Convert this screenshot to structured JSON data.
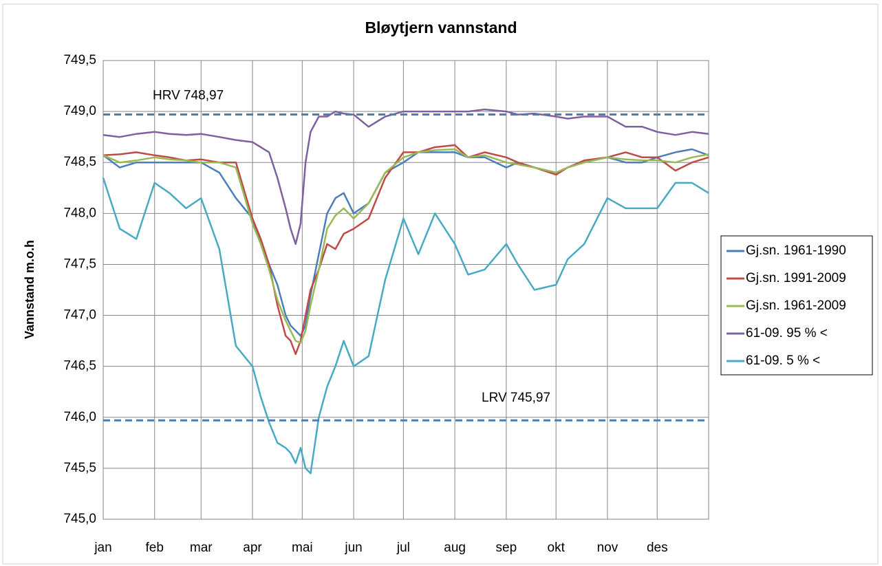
{
  "chart_data": {
    "type": "line",
    "title": "Bløytjern vannstand",
    "y_label": "Vannstand m.o.h",
    "x": [
      0,
      10,
      20,
      31,
      40,
      50,
      59,
      70,
      80,
      90,
      95,
      100,
      105,
      110,
      113,
      116,
      119,
      122,
      125,
      130,
      135,
      140,
      145,
      151,
      160,
      170,
      181,
      190,
      200,
      212,
      220,
      230,
      243,
      250,
      260,
      273,
      280,
      290,
      304,
      315,
      325,
      334,
      345,
      355,
      365
    ],
    "xlim": [
      0,
      365
    ],
    "xticks": [
      {
        "value": 0,
        "label": "jan"
      },
      {
        "value": 31,
        "label": "feb"
      },
      {
        "value": 59,
        "label": "mar"
      },
      {
        "value": 90,
        "label": "apr"
      },
      {
        "value": 120,
        "label": "mai"
      },
      {
        "value": 151,
        "label": "jun"
      },
      {
        "value": 181,
        "label": "jul"
      },
      {
        "value": 212,
        "label": "aug"
      },
      {
        "value": 243,
        "label": "sep"
      },
      {
        "value": 273,
        "label": "okt"
      },
      {
        "value": 304,
        "label": "nov"
      },
      {
        "value": 334,
        "label": "des"
      }
    ],
    "ylim": [
      745.0,
      749.5
    ],
    "yticks": [
      {
        "value": 745.0,
        "label": "745,0"
      },
      {
        "value": 745.5,
        "label": "745,5"
      },
      {
        "value": 746.0,
        "label": "746,0"
      },
      {
        "value": 746.5,
        "label": "746,5"
      },
      {
        "value": 747.0,
        "label": "747,0"
      },
      {
        "value": 747.5,
        "label": "747,5"
      },
      {
        "value": 748.0,
        "label": "748,0"
      },
      {
        "value": 748.5,
        "label": "748,5"
      },
      {
        "value": 749.0,
        "label": "749,0"
      },
      {
        "value": 749.5,
        "label": "749,5"
      }
    ],
    "grid": true,
    "legend": "right",
    "reference_lines": [
      {
        "label": "HRV 748,97",
        "value": 748.97,
        "color": "#4a7ebb"
      },
      {
        "label": "LRV 745,97",
        "value": 745.97,
        "color": "#4a7ebb"
      }
    ],
    "series": [
      {
        "name": "Gj.sn. 1961-1990",
        "color": "#4a7ebb",
        "values": [
          748.57,
          748.45,
          748.5,
          748.5,
          748.5,
          748.5,
          748.5,
          748.4,
          748.15,
          747.95,
          747.7,
          747.5,
          747.3,
          747.0,
          746.9,
          746.85,
          746.8,
          746.9,
          747.2,
          747.6,
          748.0,
          748.15,
          748.2,
          748.0,
          748.1,
          748.4,
          748.5,
          748.6,
          748.6,
          748.6,
          748.55,
          748.55,
          748.45,
          748.5,
          748.45,
          748.4,
          748.45,
          748.5,
          748.55,
          748.5,
          748.5,
          748.55,
          748.6,
          748.63,
          748.57
        ]
      },
      {
        "name": "Gj.sn. 1991-2009",
        "color": "#be4b48",
        "values": [
          748.57,
          748.58,
          748.6,
          748.57,
          748.55,
          748.52,
          748.53,
          748.5,
          748.5,
          747.95,
          747.75,
          747.5,
          747.1,
          746.8,
          746.75,
          746.62,
          746.75,
          747.0,
          747.25,
          747.45,
          747.7,
          747.65,
          747.8,
          747.85,
          747.95,
          748.35,
          748.6,
          748.6,
          748.65,
          748.67,
          748.55,
          748.6,
          748.55,
          748.5,
          748.45,
          748.38,
          748.45,
          748.52,
          748.55,
          748.6,
          748.55,
          748.55,
          748.42,
          748.5,
          748.55
        ]
      },
      {
        "name": "Gj.sn. 1961-2009",
        "color": "#98b954",
        "values": [
          748.57,
          748.5,
          748.52,
          748.55,
          748.53,
          748.52,
          748.5,
          748.5,
          748.45,
          747.9,
          747.7,
          747.45,
          747.15,
          746.95,
          746.85,
          746.75,
          746.73,
          746.85,
          747.1,
          747.45,
          747.85,
          747.98,
          748.05,
          747.95,
          748.1,
          748.4,
          748.55,
          748.6,
          748.62,
          748.63,
          748.55,
          748.57,
          748.5,
          748.48,
          748.45,
          748.4,
          748.45,
          748.5,
          748.55,
          748.53,
          748.52,
          748.52,
          748.5,
          748.55,
          748.58
        ]
      },
      {
        "name": "61-09. 95 % <",
        "color": "#7d60a0",
        "values": [
          748.77,
          748.75,
          748.78,
          748.8,
          748.78,
          748.77,
          748.78,
          748.75,
          748.72,
          748.7,
          748.65,
          748.6,
          748.35,
          748.05,
          747.85,
          747.7,
          747.9,
          748.5,
          748.8,
          748.95,
          748.95,
          749.0,
          748.98,
          748.97,
          748.85,
          748.95,
          749.0,
          749.0,
          749.0,
          749.0,
          749.0,
          749.02,
          749.0,
          748.97,
          748.98,
          748.95,
          748.93,
          748.95,
          748.95,
          748.85,
          748.85,
          748.8,
          748.77,
          748.8,
          748.78
        ]
      },
      {
        "name": "61-09. 5 % <",
        "color": "#46aac5",
        "values": [
          748.35,
          747.85,
          747.75,
          748.3,
          748.2,
          748.05,
          748.15,
          747.65,
          746.7,
          746.5,
          746.2,
          745.95,
          745.75,
          745.7,
          745.65,
          745.55,
          745.7,
          745.5,
          745.45,
          746.0,
          746.3,
          746.5,
          746.75,
          746.5,
          746.6,
          747.35,
          747.95,
          747.6,
          748.0,
          747.7,
          747.4,
          747.45,
          747.7,
          747.5,
          747.25,
          747.3,
          747.55,
          747.7,
          748.15,
          748.05,
          748.05,
          748.05,
          748.3,
          748.3,
          748.2
        ]
      }
    ]
  }
}
